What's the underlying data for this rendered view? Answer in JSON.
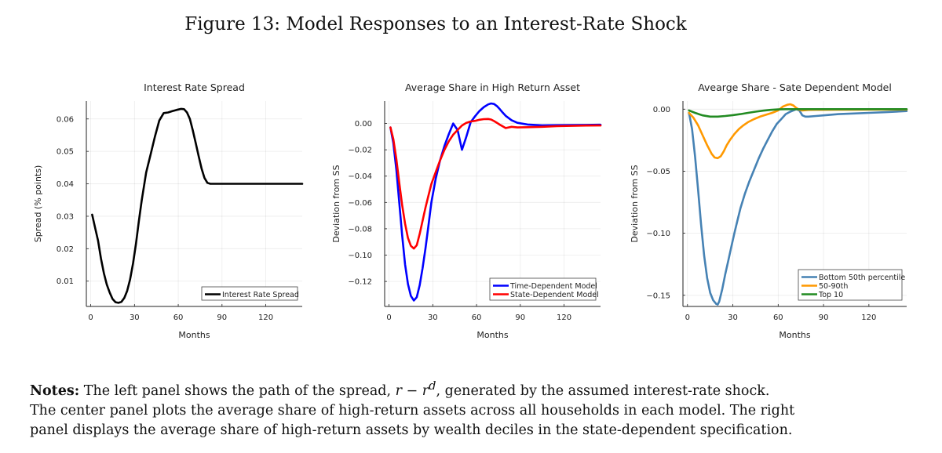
{
  "figure_title": "Figure 13: Model Responses to an Interest-Rate Shock",
  "notes": {
    "label": "Notes:",
    "line1_pre": "The left panel shows the path of the spread,",
    "formula_r": "r",
    "formula_minus": " − ",
    "formula_r2": "r",
    "formula_sup": "d",
    "line1_post": ", generated by the assumed interest-rate shock.",
    "line2": "The center panel plots the average share of high-return assets across all households in each model. The right",
    "line3": "panel displays the average share of high-return assets by wealth deciles in the state-dependent specification."
  },
  "chart_data": [
    {
      "id": "left",
      "type": "line",
      "title": "Interest Rate Spread",
      "xlabel": "Months",
      "ylabel": "Spread (% points)",
      "xlim": [
        -3,
        145
      ],
      "ylim": [
        0.0022,
        0.0655
      ],
      "xticks": [
        0,
        30,
        60,
        90,
        120
      ],
      "xtick_labels": [
        "0",
        "30",
        "60",
        "90",
        "120"
      ],
      "yticks": [
        0.01,
        0.02,
        0.03,
        0.04,
        0.05,
        0.06
      ],
      "ytick_labels": [
        "0.01",
        "0.02",
        "0.03",
        "0.04",
        "0.05",
        "0.06"
      ],
      "grid": true,
      "legend": "bottom-right",
      "series": [
        {
          "name": "Interest Rate Spread",
          "color": "#000000",
          "x": [
            1,
            3,
            5,
            7,
            9,
            11,
            13,
            15,
            17,
            19,
            21,
            23,
            25,
            27,
            29,
            31,
            33,
            35,
            38,
            41,
            44,
            47,
            50,
            53,
            56,
            59,
            62,
            64,
            66,
            68,
            70,
            72,
            74,
            76,
            78,
            80,
            82,
            84,
            86,
            90,
            100,
            110,
            120,
            130,
            145
          ],
          "values": [
            0.0305,
            0.0265,
            0.0225,
            0.017,
            0.0125,
            0.009,
            0.0065,
            0.0045,
            0.0035,
            0.0033,
            0.0036,
            0.0048,
            0.007,
            0.0105,
            0.0155,
            0.0215,
            0.0285,
            0.035,
            0.0435,
            0.049,
            0.0545,
            0.0595,
            0.0618,
            0.062,
            0.0624,
            0.0628,
            0.0631,
            0.063,
            0.062,
            0.06,
            0.0565,
            0.0525,
            0.0485,
            0.0447,
            0.0418,
            0.0403,
            0.04,
            0.04,
            0.04,
            0.04,
            0.04,
            0.04,
            0.04,
            0.04,
            0.04
          ]
        }
      ]
    },
    {
      "id": "center",
      "type": "line",
      "title": "Average Share in High Return Asset",
      "xlabel": "Months",
      "ylabel": "Deviation from SS",
      "xlim": [
        -3,
        145
      ],
      "ylim": [
        -0.139,
        0.017
      ],
      "xticks": [
        0,
        30,
        60,
        90,
        120
      ],
      "xtick_labels": [
        "0",
        "30",
        "60",
        "90",
        "120"
      ],
      "yticks": [
        0.0,
        -0.02,
        -0.04,
        -0.06,
        -0.08,
        -0.1,
        -0.12
      ],
      "ytick_labels": [
        "0.00",
        "−0.02",
        "−0.04",
        "−0.06",
        "−0.08",
        "−0.10",
        "−0.12"
      ],
      "grid": true,
      "legend": "bottom-right",
      "series": [
        {
          "name": "Time-Dependent Model",
          "color": "#0000ff",
          "x": [
            1,
            3,
            5,
            7,
            9,
            11,
            13,
            15,
            17,
            19,
            21,
            23,
            25,
            27,
            29,
            32,
            35,
            38,
            41,
            44,
            47,
            50,
            53,
            56,
            59,
            62,
            65,
            68,
            70,
            72,
            74,
            76,
            78,
            80,
            84,
            88,
            95,
            105,
            115,
            125,
            135,
            145
          ],
          "values": [
            -0.003,
            -0.015,
            -0.035,
            -0.06,
            -0.085,
            -0.107,
            -0.122,
            -0.131,
            -0.1345,
            -0.132,
            -0.123,
            -0.11,
            -0.095,
            -0.078,
            -0.06,
            -0.042,
            -0.028,
            -0.017,
            -0.008,
            0.0,
            -0.005,
            -0.02,
            -0.01,
            0.001,
            0.0055,
            0.0095,
            0.0125,
            0.0145,
            0.0152,
            0.0148,
            0.0132,
            0.0108,
            0.0082,
            0.0058,
            0.0025,
            0.0005,
            -0.0008,
            -0.0014,
            -0.0013,
            -0.0012,
            -0.0011,
            -0.001
          ]
        },
        {
          "name": "State-Dependent Model",
          "color": "#ff0000",
          "x": [
            1,
            3,
            5,
            7,
            9,
            11,
            13,
            15,
            17,
            19,
            21,
            23,
            25,
            27,
            29,
            32,
            35,
            38,
            41,
            44,
            47,
            50,
            53,
            56,
            59,
            62,
            65,
            68,
            70,
            72,
            74,
            76,
            78,
            80,
            84,
            88,
            95,
            105,
            115,
            125,
            135,
            145
          ],
          "values": [
            -0.003,
            -0.012,
            -0.027,
            -0.045,
            -0.062,
            -0.076,
            -0.087,
            -0.093,
            -0.095,
            -0.0925,
            -0.084,
            -0.074,
            -0.064,
            -0.055,
            -0.046,
            -0.037,
            -0.028,
            -0.02,
            -0.0135,
            -0.0085,
            -0.005,
            -0.0015,
            0.0005,
            0.0015,
            0.002,
            0.0028,
            0.0033,
            0.0034,
            0.003,
            0.0018,
            0.0005,
            -0.001,
            -0.0022,
            -0.0035,
            -0.0025,
            -0.003,
            -0.0028,
            -0.0025,
            -0.002,
            -0.0018,
            -0.0016,
            -0.0015
          ]
        }
      ]
    },
    {
      "id": "right",
      "type": "line",
      "title": "Avearge Share - Sate Dependent Model",
      "xlabel": "Months",
      "ylabel": "Deviation from SS",
      "xlim": [
        -3,
        145
      ],
      "ylim": [
        -0.159,
        0.0065
      ],
      "xticks": [
        0,
        30,
        60,
        90,
        120
      ],
      "xtick_labels": [
        "0",
        "30",
        "60",
        "90",
        "120"
      ],
      "yticks": [
        0.0,
        -0.05,
        -0.1,
        -0.15
      ],
      "ytick_labels": [
        "0.00",
        "−0.05",
        "−0.10",
        "−0.15"
      ],
      "grid": true,
      "legend": "bottom-right",
      "series": [
        {
          "name": "Bottom 50th percentile",
          "color": "#4682b4",
          "x": [
            1,
            3,
            5,
            7,
            9,
            11,
            13,
            15,
            17,
            19,
            20,
            21,
            23,
            25,
            27,
            29,
            31,
            33,
            35,
            38,
            41,
            44,
            47,
            50,
            53,
            56,
            59,
            62,
            65,
            68,
            70,
            72,
            74,
            76,
            78,
            80,
            85,
            90,
            100,
            110,
            120,
            130,
            145
          ],
          "values": [
            -0.003,
            -0.016,
            -0.038,
            -0.065,
            -0.093,
            -0.118,
            -0.136,
            -0.148,
            -0.154,
            -0.157,
            -0.1575,
            -0.155,
            -0.145,
            -0.133,
            -0.122,
            -0.111,
            -0.1,
            -0.09,
            -0.08,
            -0.068,
            -0.058,
            -0.049,
            -0.04,
            -0.032,
            -0.025,
            -0.018,
            -0.012,
            -0.008,
            -0.004,
            -0.002,
            -0.001,
            0.0,
            -0.001,
            -0.005,
            -0.006,
            -0.006,
            -0.0055,
            -0.005,
            -0.004,
            -0.0035,
            -0.003,
            -0.0025,
            -0.0015
          ]
        },
        {
          "name": "50-90th",
          "color": "#ff9900",
          "x": [
            1,
            4,
            7,
            10,
            13,
            16,
            18,
            20,
            22,
            24,
            26,
            28,
            31,
            34,
            37,
            40,
            44,
            48,
            52,
            56,
            60,
            63,
            66,
            68,
            70,
            72,
            74,
            76,
            78,
            80,
            85,
            90,
            100,
            110,
            120,
            130,
            145
          ],
          "values": [
            -0.003,
            -0.007,
            -0.013,
            -0.021,
            -0.029,
            -0.036,
            -0.039,
            -0.0395,
            -0.038,
            -0.034,
            -0.029,
            -0.025,
            -0.02,
            -0.016,
            -0.013,
            -0.0105,
            -0.008,
            -0.006,
            -0.0045,
            -0.003,
            -0.001,
            0.002,
            0.0035,
            0.004,
            0.003,
            0.001,
            -0.0005,
            -0.001,
            -0.0008,
            -0.0006,
            -0.0005,
            -0.0005,
            -0.0004,
            -0.0004,
            -0.0003,
            -0.0003,
            -0.0003
          ]
        },
        {
          "name": "Top 10",
          "color": "#228b22",
          "x": [
            1,
            5,
            10,
            15,
            20,
            25,
            30,
            35,
            40,
            45,
            50,
            55,
            60,
            65,
            70,
            80,
            90,
            100,
            110,
            120,
            130,
            145
          ],
          "values": [
            -0.001,
            -0.003,
            -0.005,
            -0.006,
            -0.006,
            -0.0055,
            -0.0048,
            -0.004,
            -0.003,
            -0.002,
            -0.0012,
            -0.0006,
            -0.0002,
            0.0,
            0.0,
            0.0,
            0.0,
            0.0,
            0.0,
            0.0,
            0.0,
            0.0
          ]
        }
      ]
    }
  ]
}
